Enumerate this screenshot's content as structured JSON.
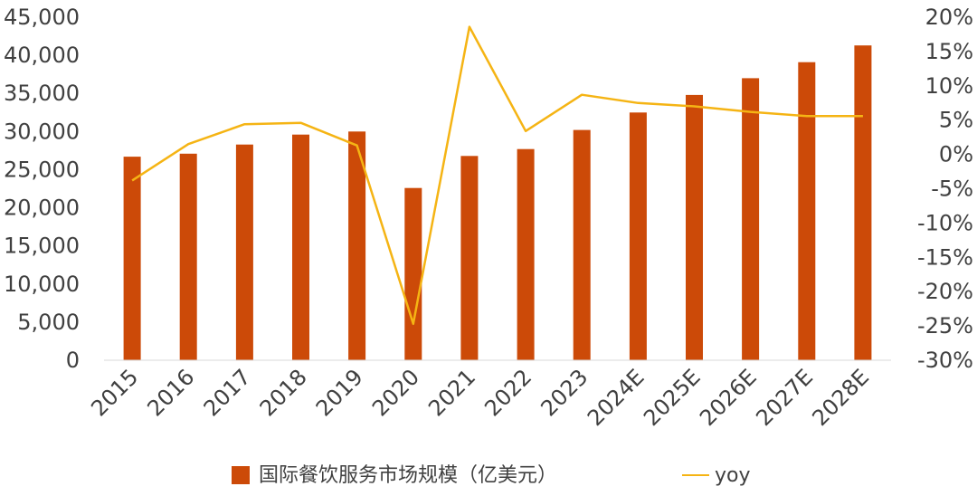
{
  "chart_data": {
    "type": "bar",
    "categories": [
      "2015",
      "2016",
      "2017",
      "2018",
      "2019",
      "2020",
      "2021",
      "2022",
      "2023",
      "2024E",
      "2025E",
      "2026E",
      "2027E",
      "2028E"
    ],
    "series": [
      {
        "name": "国际餐饮服务市场规模（亿美元）",
        "type": "bar",
        "axis": "left",
        "color": "#cc4a08",
        "values": [
          26700,
          27100,
          28300,
          29600,
          30000,
          22600,
          26800,
          27700,
          30200,
          32500,
          34800,
          37000,
          39100,
          41300
        ]
      },
      {
        "name": "yoy",
        "type": "line",
        "axis": "right",
        "color": "#f5b414",
        "values": [
          -3.8,
          1.5,
          4.4,
          4.6,
          1.3,
          -24.7,
          18.6,
          3.4,
          8.7,
          7.5,
          7.0,
          6.2,
          5.6,
          5.6
        ]
      }
    ],
    "y_left": {
      "min": 0,
      "max": 45000,
      "ticks": [
        0,
        5000,
        10000,
        15000,
        20000,
        25000,
        30000,
        35000,
        40000,
        45000
      ],
      "tick_labels": [
        "0",
        "5,000",
        "10,000",
        "15,000",
        "20,000",
        "25,000",
        "30,000",
        "35,000",
        "40,000",
        "45,000"
      ]
    },
    "y_right": {
      "min": -30,
      "max": 20,
      "ticks": [
        -30,
        -25,
        -20,
        -15,
        -10,
        -5,
        0,
        5,
        10,
        15,
        20
      ],
      "tick_labels": [
        "-30%",
        "-25%",
        "-20%",
        "-15%",
        "-10%",
        "-5%",
        "0%",
        "5%",
        "10%",
        "15%",
        "20%"
      ]
    },
    "grid": false,
    "legend_position": "bottom",
    "title": "",
    "xlabel": "",
    "ylabel": ""
  }
}
